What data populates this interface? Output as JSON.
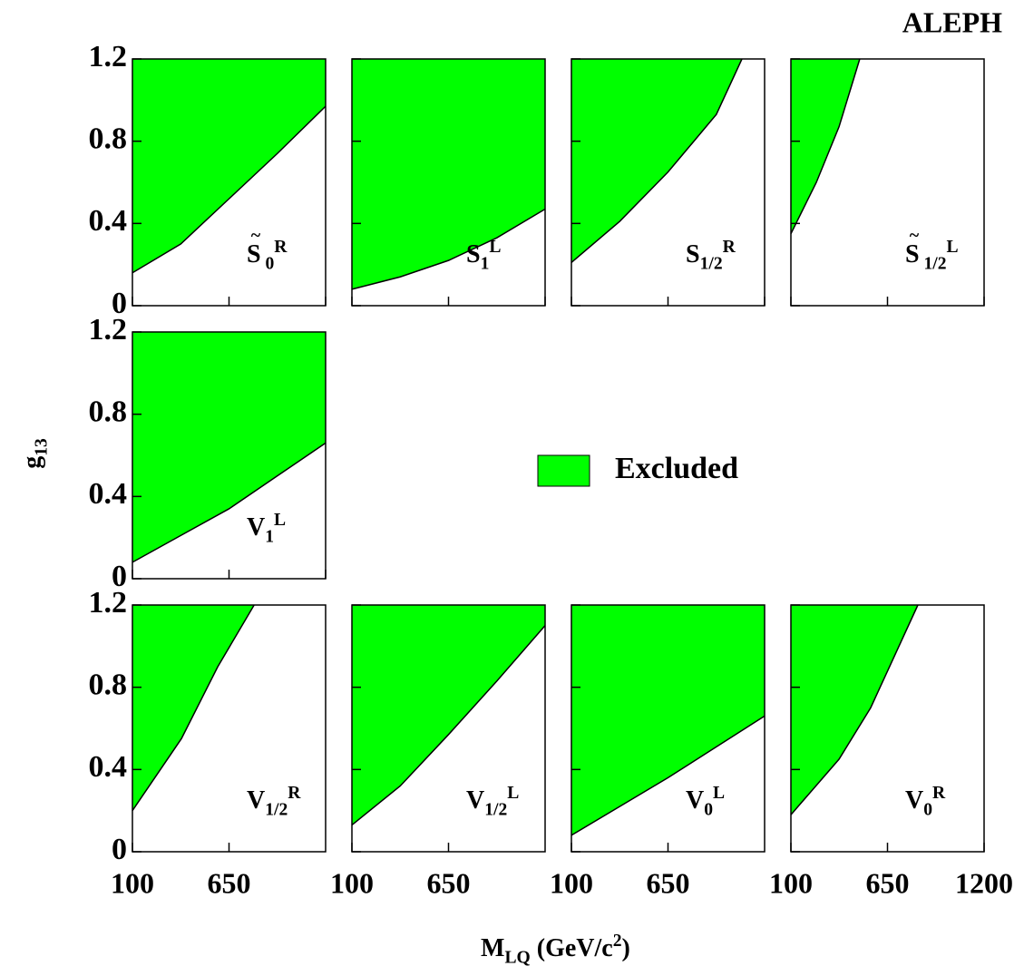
{
  "title": "ALEPH",
  "xlabel": [
    {
      "text": "M"
    },
    {
      "text": "LQ",
      "shift": "sub"
    },
    {
      "text": " (GeV/c"
    },
    {
      "text": "2",
      "shift": "sup"
    },
    {
      "text": ")"
    }
  ],
  "ylabel": [
    {
      "text": "g"
    },
    {
      "text": "13",
      "shift": "sub"
    }
  ],
  "legend": {
    "label": "Excluded",
    "color": "#00ff00"
  },
  "chart_data": [
    {
      "type": "area",
      "label": [
        {
          "text": "S",
          "accent": "~"
        },
        {
          "text": " 0",
          "shift": "sub"
        },
        {
          "text": "R",
          "shift": "sup"
        }
      ],
      "x": [
        100,
        375,
        650,
        925,
        1200
      ],
      "values": [
        0.16,
        0.3,
        0.52,
        0.74,
        0.97
      ],
      "color": "#00ff00",
      "xlim": [
        100,
        1200
      ],
      "ylim": [
        0,
        1.2
      ],
      "xticks": [
        100,
        650,
        1200
      ],
      "yticks": [
        0,
        0.4,
        0.8,
        1.2
      ],
      "show_xticklabels": false,
      "show_yticklabels": true
    },
    {
      "type": "area",
      "label": [
        {
          "text": "S"
        },
        {
          "text": "1",
          "shift": "sub"
        },
        {
          "text": "L",
          "shift": "sup"
        }
      ],
      "x": [
        100,
        375,
        650,
        925,
        1200
      ],
      "values": [
        0.08,
        0.14,
        0.22,
        0.33,
        0.47
      ],
      "color": "#00ff00",
      "xlim": [
        100,
        1200
      ],
      "ylim": [
        0,
        1.2
      ],
      "xticks": [
        100,
        650,
        1200
      ],
      "yticks": [
        0,
        0.4,
        0.8,
        1.2
      ],
      "show_xticklabels": false,
      "show_yticklabels": false
    },
    {
      "type": "area",
      "label": [
        {
          "text": "S"
        },
        {
          "text": "1/2",
          "shift": "sub"
        },
        {
          "text": "R",
          "shift": "sup"
        }
      ],
      "x": [
        100,
        375,
        650,
        925,
        1071
      ],
      "values": [
        0.21,
        0.41,
        0.65,
        0.93,
        1.2
      ],
      "color": "#00ff00",
      "xlim": [
        100,
        1200
      ],
      "ylim": [
        0,
        1.2
      ],
      "xticks": [
        100,
        650,
        1200
      ],
      "yticks": [
        0,
        0.4,
        0.8,
        1.2
      ],
      "show_xticklabels": false,
      "show_yticklabels": false
    },
    {
      "type": "area",
      "label": [
        {
          "text": "S",
          "accent": "~"
        },
        {
          "text": " 1/2",
          "shift": "sub"
        },
        {
          "text": "L",
          "shift": "sup"
        }
      ],
      "x": [
        100,
        245,
        374,
        492
      ],
      "values": [
        0.35,
        0.6,
        0.87,
        1.2
      ],
      "color": "#00ff00",
      "xlim": [
        100,
        1200
      ],
      "ylim": [
        0,
        1.2
      ],
      "xticks": [
        100,
        650,
        1200
      ],
      "yticks": [
        0,
        0.4,
        0.8,
        1.2
      ],
      "show_xticklabels": false,
      "show_yticklabels": false
    },
    {
      "type": "area",
      "label": [
        {
          "text": "V"
        },
        {
          "text": "1",
          "shift": "sub"
        },
        {
          "text": "L",
          "shift": "sup"
        }
      ],
      "x": [
        100,
        375,
        650,
        925,
        1200
      ],
      "values": [
        0.08,
        0.21,
        0.34,
        0.5,
        0.66
      ],
      "color": "#00ff00",
      "xlim": [
        100,
        1200
      ],
      "ylim": [
        0,
        1.2
      ],
      "xticks": [
        100,
        650,
        1200
      ],
      "yticks": [
        0,
        0.4,
        0.8,
        1.2
      ],
      "show_xticklabels": false,
      "show_yticklabels": true
    },
    {
      "type": "area",
      "label": [
        {
          "text": "V"
        },
        {
          "text": "1/2",
          "shift": "sub"
        },
        {
          "text": "R",
          "shift": "sup"
        }
      ],
      "x": [
        100,
        379,
        586,
        793
      ],
      "values": [
        0.2,
        0.55,
        0.9,
        1.2
      ],
      "color": "#00ff00",
      "xlim": [
        100,
        1200
      ],
      "ylim": [
        0,
        1.2
      ],
      "xticks": [
        100,
        650
      ],
      "yticks": [
        0,
        0.4,
        0.8,
        1.2
      ],
      "show_xticklabels": true,
      "show_yticklabels": true
    },
    {
      "type": "area",
      "label": [
        {
          "text": "V"
        },
        {
          "text": "1/2",
          "shift": "sub"
        },
        {
          "text": "L",
          "shift": "sup"
        }
      ],
      "x": [
        100,
        375,
        650,
        925,
        1200
      ],
      "values": [
        0.13,
        0.32,
        0.57,
        0.83,
        1.1
      ],
      "color": "#00ff00",
      "xlim": [
        100,
        1200
      ],
      "ylim": [
        0,
        1.2
      ],
      "xticks": [
        100,
        650
      ],
      "yticks": [
        0,
        0.4,
        0.8,
        1.2
      ],
      "show_xticklabels": true,
      "show_yticklabels": false
    },
    {
      "type": "area",
      "label": [
        {
          "text": "V"
        },
        {
          "text": "0",
          "shift": "sub"
        },
        {
          "text": "L",
          "shift": "sup"
        }
      ],
      "x": [
        100,
        375,
        650,
        925,
        1200
      ],
      "values": [
        0.08,
        0.22,
        0.36,
        0.51,
        0.66
      ],
      "color": "#00ff00",
      "xlim": [
        100,
        1200
      ],
      "ylim": [
        0,
        1.2
      ],
      "xticks": [
        100,
        650
      ],
      "yticks": [
        0,
        0.4,
        0.8,
        1.2
      ],
      "show_xticklabels": true,
      "show_yticklabels": false
    },
    {
      "type": "area",
      "label": [
        {
          "text": "V"
        },
        {
          "text": "0",
          "shift": "sub"
        },
        {
          "text": "R",
          "shift": "sup"
        }
      ],
      "x": [
        100,
        374,
        554,
        823
      ],
      "values": [
        0.18,
        0.45,
        0.7,
        1.2
      ],
      "color": "#00ff00",
      "xlim": [
        100,
        1200
      ],
      "ylim": [
        0,
        1.2
      ],
      "xticks": [
        100,
        650,
        1200
      ],
      "yticks": [
        0,
        0.4,
        0.8,
        1.2
      ],
      "show_xticklabels": true,
      "show_yticklabels": false
    }
  ]
}
